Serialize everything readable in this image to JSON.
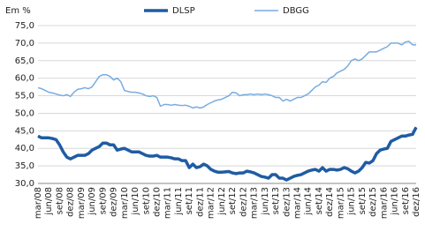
{
  "chart_data": {
    "type": "line",
    "y_label": "Em %",
    "categories": [
      "mar/08",
      null,
      null,
      "jun/08",
      null,
      null,
      "set/08",
      null,
      null,
      "dez/08",
      null,
      null,
      "mar/09",
      null,
      null,
      "jun/09",
      null,
      null,
      "set/09",
      null,
      null,
      "dez/09",
      null,
      null,
      "mar/10",
      null,
      null,
      "jun/10",
      null,
      null,
      "set/10",
      null,
      null,
      "dez/10",
      null,
      null,
      "mar/11",
      null,
      null,
      "jun/11",
      null,
      null,
      "set/11",
      null,
      null,
      "dez/11",
      null,
      null,
      "mar/12",
      null,
      null,
      "jun/12",
      null,
      null,
      "set/12",
      null,
      null,
      "dez/12",
      null,
      null,
      "mar/13",
      null,
      null,
      "jun/13",
      null,
      null,
      "set/13",
      null,
      null,
      "dez/13",
      null,
      null,
      "mar/14",
      null,
      null,
      "jun/14",
      null,
      null,
      "set/14",
      null,
      null,
      "dez/14",
      null,
      null,
      "mar/15",
      null,
      null,
      "jun/15",
      null,
      null,
      "set/15",
      null,
      null,
      "dez/15",
      null,
      null,
      "mar/16",
      null,
      null,
      "jun/16",
      null,
      null,
      "set/16",
      null,
      null,
      "dez/16"
    ],
    "series": [
      {
        "name": "DLSP",
        "color": "#1f5ca3",
        "width": 3.5,
        "values": [
          43.5,
          43,
          43,
          43,
          42.8,
          42.5,
          41,
          39,
          37.5,
          37,
          37.5,
          38,
          38,
          38,
          38.5,
          39.5,
          40,
          40.5,
          41.5,
          41.5,
          41,
          41,
          39.5,
          39.8,
          40,
          39.5,
          39,
          39,
          39,
          38.5,
          38,
          37.8,
          37.8,
          38,
          37.5,
          37.5,
          37.5,
          37.3,
          37,
          37,
          36.5,
          36.5,
          34.5,
          35.5,
          34.5,
          34.8,
          35.5,
          35,
          34,
          33.5,
          33.2,
          33.2,
          33.3,
          33.4,
          33,
          32.8,
          33,
          33,
          33.5,
          33.3,
          33,
          32.5,
          32,
          31.8,
          31.5,
          32.5,
          32.5,
          31.5,
          31.5,
          31,
          31.5,
          32,
          32.3,
          32.5,
          33,
          33.5,
          33.8,
          34,
          33.5,
          34.5,
          33.5,
          34,
          34,
          33.8,
          34,
          34.5,
          34.2,
          33.5,
          33,
          33.5,
          34.5,
          36,
          35.8,
          36.5,
          38.5,
          39.5,
          39.8,
          40,
          42,
          42.5,
          43,
          43.5,
          43.5,
          43.8,
          44,
          46
        ]
      },
      {
        "name": "DBGG",
        "color": "#79ace0",
        "width": 1.5,
        "values": [
          57.3,
          57,
          56.5,
          56,
          55.8,
          55.5,
          55.2,
          55,
          55.3,
          54.8,
          56,
          56.8,
          57,
          57.3,
          57,
          57.5,
          59,
          60.5,
          61,
          61,
          60.5,
          59.5,
          60,
          59,
          56.5,
          56.2,
          56,
          56,
          55.8,
          55.5,
          55,
          54.8,
          55,
          54.5,
          52,
          52.5,
          52.5,
          52.3,
          52.5,
          52.3,
          52.2,
          52.3,
          52,
          51.5,
          51.8,
          51.5,
          51.8,
          52.5,
          53,
          53.5,
          53.8,
          54,
          54.5,
          55,
          56,
          55.8,
          55,
          55.3,
          55.3,
          55.5,
          55.3,
          55.5,
          55.3,
          55.5,
          55.3,
          55,
          54.5,
          54.5,
          53.5,
          54,
          53.5,
          54,
          54.5,
          54.5,
          55,
          55.5,
          56.5,
          57.5,
          58,
          59,
          58.8,
          60,
          60.5,
          61.5,
          62,
          62.5,
          63.5,
          65,
          65.5,
          65,
          65.5,
          66.5,
          67.5,
          67.5,
          67.5,
          68,
          68.5,
          69,
          70,
          70,
          70,
          69.5,
          70.3,
          70.5,
          69.5,
          69.5
        ]
      }
    ],
    "ylim": [
      30,
      75
    ],
    "yticks": [
      {
        "value": 30,
        "label": "30,0"
      },
      {
        "value": 35,
        "label": "35,0"
      },
      {
        "value": 40,
        "label": "40,0"
      },
      {
        "value": 45,
        "label": "45,0"
      },
      {
        "value": 50,
        "label": "50,0"
      },
      {
        "value": 55,
        "label": "55,0"
      },
      {
        "value": 60,
        "label": "60,0"
      },
      {
        "value": 65,
        "label": "65,0"
      },
      {
        "value": 70,
        "label": "70,0"
      },
      {
        "value": 75,
        "label": "75,0"
      }
    ],
    "grid": true
  }
}
